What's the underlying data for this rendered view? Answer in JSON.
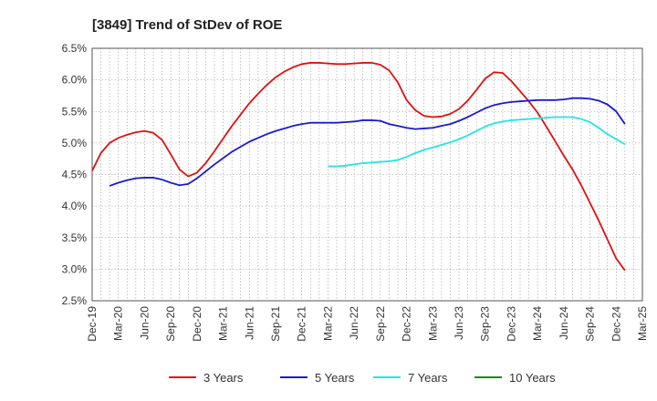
{
  "chart_data": {
    "type": "line",
    "title": "[3849]  Trend of StDev of ROE",
    "xlabel": "",
    "ylabel": "",
    "y_ticks": [
      "6.5%",
      "6.0%",
      "5.5%",
      "5.0%",
      "4.5%",
      "4.0%",
      "3.5%",
      "3.0%",
      "2.5%"
    ],
    "ylim": [
      2.5,
      6.5
    ],
    "x_ticks": [
      "Dec-19",
      "Mar-20",
      "Jun-20",
      "Sep-20",
      "Dec-20",
      "Mar-21",
      "Jun-21",
      "Sep-21",
      "Dec-21",
      "Mar-22",
      "Jun-22",
      "Sep-22",
      "Dec-22",
      "Mar-23",
      "Jun-23",
      "Sep-23",
      "Dec-23",
      "Mar-24",
      "Jun-24",
      "Sep-24",
      "Dec-24",
      "Mar-25"
    ],
    "xlim": [
      "Dec-19",
      "Mar-25"
    ],
    "grid": true,
    "legend_position": "bottom",
    "series": [
      {
        "name": "3 Years",
        "color": "#dd1111",
        "points": [
          [
            "Dec-19",
            4.56
          ],
          [
            "Jan-20",
            4.84
          ],
          [
            "Feb-20",
            5.0
          ],
          [
            "Mar-20",
            5.08
          ],
          [
            "Apr-20",
            5.13
          ],
          [
            "May-20",
            5.17
          ],
          [
            "Jun-20",
            5.19
          ],
          [
            "Jul-20",
            5.16
          ],
          [
            "Aug-20",
            5.05
          ],
          [
            "Sep-20",
            4.82
          ],
          [
            "Oct-20",
            4.58
          ],
          [
            "Nov-20",
            4.47
          ],
          [
            "Dec-20",
            4.53
          ],
          [
            "Jan-21",
            4.68
          ],
          [
            "Feb-21",
            4.87
          ],
          [
            "Mar-21",
            5.07
          ],
          [
            "Apr-21",
            5.27
          ],
          [
            "May-21",
            5.45
          ],
          [
            "Jun-21",
            5.63
          ],
          [
            "Jul-21",
            5.78
          ],
          [
            "Aug-21",
            5.92
          ],
          [
            "Sep-21",
            6.04
          ],
          [
            "Oct-21",
            6.13
          ],
          [
            "Nov-21",
            6.2
          ],
          [
            "Dec-21",
            6.25
          ],
          [
            "Jan-22",
            6.27
          ],
          [
            "Feb-22",
            6.27
          ],
          [
            "Mar-22",
            6.26
          ],
          [
            "Apr-22",
            6.25
          ],
          [
            "May-22",
            6.25
          ],
          [
            "Jun-22",
            6.26
          ],
          [
            "Jul-22",
            6.27
          ],
          [
            "Aug-22",
            6.27
          ],
          [
            "Sep-22",
            6.24
          ],
          [
            "Oct-22",
            6.15
          ],
          [
            "Nov-22",
            5.96
          ],
          [
            "Dec-22",
            5.68
          ],
          [
            "Jan-23",
            5.52
          ],
          [
            "Feb-23",
            5.43
          ],
          [
            "Mar-23",
            5.41
          ],
          [
            "Apr-23",
            5.42
          ],
          [
            "May-23",
            5.46
          ],
          [
            "Jun-23",
            5.54
          ],
          [
            "Jul-23",
            5.67
          ],
          [
            "Aug-23",
            5.84
          ],
          [
            "Sep-23",
            6.02
          ],
          [
            "Oct-23",
            6.12
          ],
          [
            "Nov-23",
            6.11
          ],
          [
            "Dec-23",
            5.98
          ],
          [
            "Jan-24",
            5.82
          ],
          [
            "Feb-24",
            5.66
          ],
          [
            "Mar-24",
            5.48
          ],
          [
            "Apr-24",
            5.26
          ],
          [
            "May-24",
            5.03
          ],
          [
            "Jun-24",
            4.8
          ],
          [
            "Jul-24",
            4.58
          ],
          [
            "Aug-24",
            4.33
          ],
          [
            "Sep-24",
            4.05
          ],
          [
            "Oct-24",
            3.77
          ],
          [
            "Nov-24",
            3.47
          ],
          [
            "Dec-24",
            3.17
          ],
          [
            "Jan-25",
            2.98
          ]
        ]
      },
      {
        "name": "5 Years",
        "color": "#1a1acc",
        "points": [
          [
            "Feb-20",
            4.32
          ],
          [
            "Mar-20",
            4.37
          ],
          [
            "Apr-20",
            4.41
          ],
          [
            "May-20",
            4.44
          ],
          [
            "Jun-20",
            4.45
          ],
          [
            "Jul-20",
            4.45
          ],
          [
            "Aug-20",
            4.42
          ],
          [
            "Sep-20",
            4.37
          ],
          [
            "Oct-20",
            4.33
          ],
          [
            "Nov-20",
            4.35
          ],
          [
            "Dec-20",
            4.44
          ],
          [
            "Jan-21",
            4.55
          ],
          [
            "Feb-21",
            4.66
          ],
          [
            "Mar-21",
            4.76
          ],
          [
            "Apr-21",
            4.86
          ],
          [
            "May-21",
            4.94
          ],
          [
            "Jun-21",
            5.02
          ],
          [
            "Jul-21",
            5.08
          ],
          [
            "Aug-21",
            5.14
          ],
          [
            "Sep-21",
            5.19
          ],
          [
            "Oct-21",
            5.23
          ],
          [
            "Nov-21",
            5.27
          ],
          [
            "Dec-21",
            5.3
          ],
          [
            "Jan-22",
            5.32
          ],
          [
            "Feb-22",
            5.32
          ],
          [
            "Mar-22",
            5.32
          ],
          [
            "Apr-22",
            5.32
          ],
          [
            "May-22",
            5.33
          ],
          [
            "Jun-22",
            5.34
          ],
          [
            "Jul-22",
            5.36
          ],
          [
            "Aug-22",
            5.36
          ],
          [
            "Sep-22",
            5.35
          ],
          [
            "Oct-22",
            5.3
          ],
          [
            "Nov-22",
            5.27
          ],
          [
            "Dec-22",
            5.24
          ],
          [
            "Jan-23",
            5.22
          ],
          [
            "Feb-23",
            5.23
          ],
          [
            "Mar-23",
            5.24
          ],
          [
            "Apr-23",
            5.27
          ],
          [
            "May-23",
            5.3
          ],
          [
            "Jun-23",
            5.35
          ],
          [
            "Jul-23",
            5.41
          ],
          [
            "Aug-23",
            5.48
          ],
          [
            "Sep-23",
            5.55
          ],
          [
            "Oct-23",
            5.6
          ],
          [
            "Nov-23",
            5.63
          ],
          [
            "Dec-23",
            5.65
          ],
          [
            "Jan-24",
            5.66
          ],
          [
            "Feb-24",
            5.67
          ],
          [
            "Mar-24",
            5.68
          ],
          [
            "Apr-24",
            5.68
          ],
          [
            "May-24",
            5.68
          ],
          [
            "Jun-24",
            5.69
          ],
          [
            "Jul-24",
            5.71
          ],
          [
            "Aug-24",
            5.71
          ],
          [
            "Sep-24",
            5.7
          ],
          [
            "Oct-24",
            5.67
          ],
          [
            "Nov-24",
            5.61
          ],
          [
            "Dec-24",
            5.5
          ],
          [
            "Jan-25",
            5.3
          ]
        ]
      },
      {
        "name": "7 Years",
        "color": "#22e5e5",
        "points": [
          [
            "Mar-22",
            4.63
          ],
          [
            "Apr-22",
            4.63
          ],
          [
            "May-22",
            4.64
          ],
          [
            "Jun-22",
            4.66
          ],
          [
            "Jul-22",
            4.68
          ],
          [
            "Aug-22",
            4.69
          ],
          [
            "Sep-22",
            4.7
          ],
          [
            "Oct-22",
            4.71
          ],
          [
            "Nov-22",
            4.73
          ],
          [
            "Dec-22",
            4.78
          ],
          [
            "Jan-23",
            4.84
          ],
          [
            "Feb-23",
            4.89
          ],
          [
            "Mar-23",
            4.93
          ],
          [
            "Apr-23",
            4.97
          ],
          [
            "May-23",
            5.01
          ],
          [
            "Jun-23",
            5.06
          ],
          [
            "Jul-23",
            5.12
          ],
          [
            "Aug-23",
            5.19
          ],
          [
            "Sep-23",
            5.26
          ],
          [
            "Oct-23",
            5.31
          ],
          [
            "Nov-23",
            5.34
          ],
          [
            "Dec-23",
            5.36
          ],
          [
            "Jan-24",
            5.37
          ],
          [
            "Feb-24",
            5.38
          ],
          [
            "Mar-24",
            5.39
          ],
          [
            "Apr-24",
            5.4
          ],
          [
            "May-24",
            5.41
          ],
          [
            "Jun-24",
            5.41
          ],
          [
            "Jul-24",
            5.41
          ],
          [
            "Aug-24",
            5.38
          ],
          [
            "Sep-24",
            5.33
          ],
          [
            "Oct-24",
            5.24
          ],
          [
            "Nov-24",
            5.14
          ],
          [
            "Dec-24",
            5.06
          ],
          [
            "Jan-25",
            4.98
          ]
        ]
      },
      {
        "name": "10 Years",
        "color": "#1a8a1a",
        "points": []
      }
    ]
  }
}
